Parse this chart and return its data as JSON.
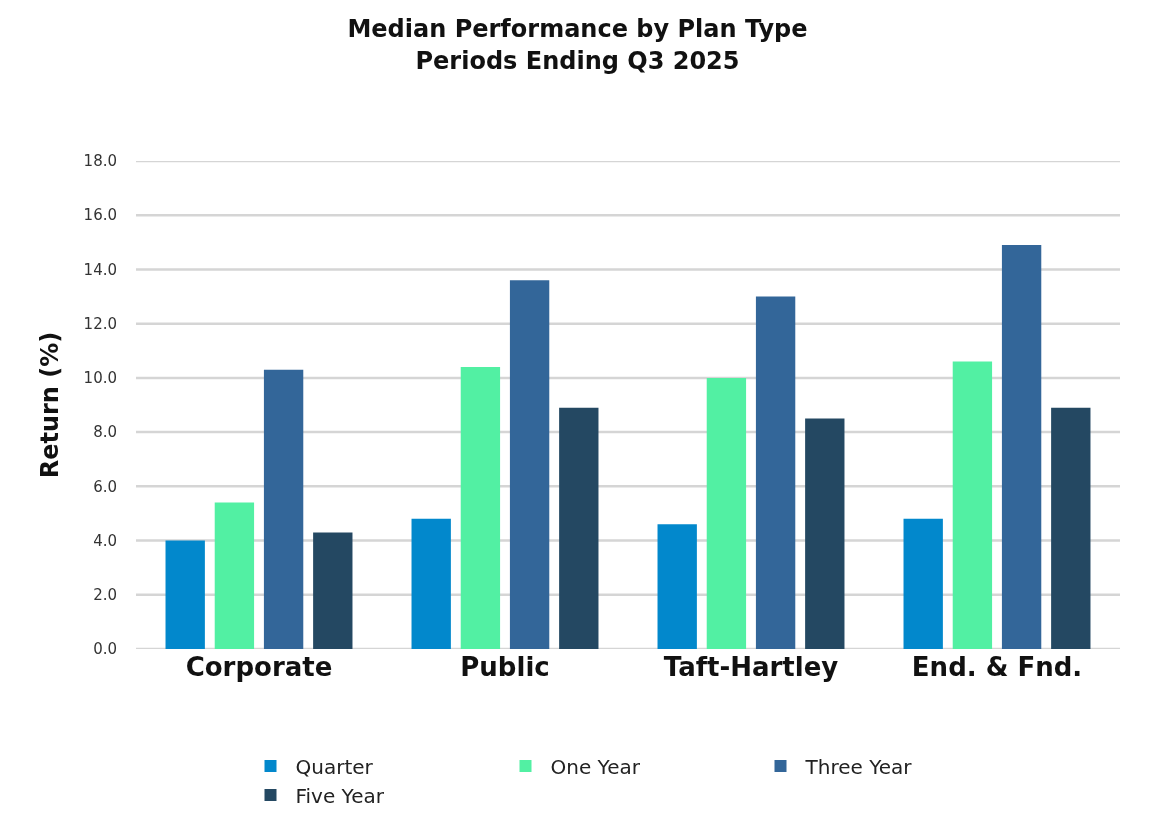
{
  "chart_data": {
    "type": "bar",
    "title": "Median Performance by Plan Type\nPeriods Ending Q3 2025",
    "ylabel": "Return (%)",
    "categories": [
      "Corporate",
      "Public",
      "Taft-Hartley",
      "End. & Fnd."
    ],
    "series": [
      {
        "name": "Quarter",
        "color": "#0288cc",
        "values": [
          4.0,
          4.8,
          4.6,
          4.8
        ]
      },
      {
        "name": "One Year",
        "color": "#52f0a3",
        "values": [
          5.4,
          10.4,
          10.0,
          10.6
        ]
      },
      {
        "name": "Three Year",
        "color": "#336699",
        "values": [
          10.3,
          13.6,
          13.0,
          14.9
        ]
      },
      {
        "name": "Five Year",
        "color": "#244862",
        "values": [
          4.3,
          8.9,
          8.5,
          8.9
        ]
      }
    ],
    "ylim": [
      0,
      18
    ],
    "yticks": [
      {
        "value": 0,
        "label": "0.0"
      },
      {
        "value": 2,
        "label": "2.0"
      },
      {
        "value": 4,
        "label": "4.0"
      },
      {
        "value": 6,
        "label": "6.0"
      },
      {
        "value": 8,
        "label": "8.0"
      },
      {
        "value": 10,
        "label": "10.0"
      },
      {
        "value": 12,
        "label": "12.0"
      },
      {
        "value": 14,
        "label": "14.0"
      },
      {
        "value": 16,
        "label": "16.0"
      },
      {
        "value": 18,
        "label": "18.0"
      }
    ],
    "grid": "y",
    "legend": "bottom"
  }
}
